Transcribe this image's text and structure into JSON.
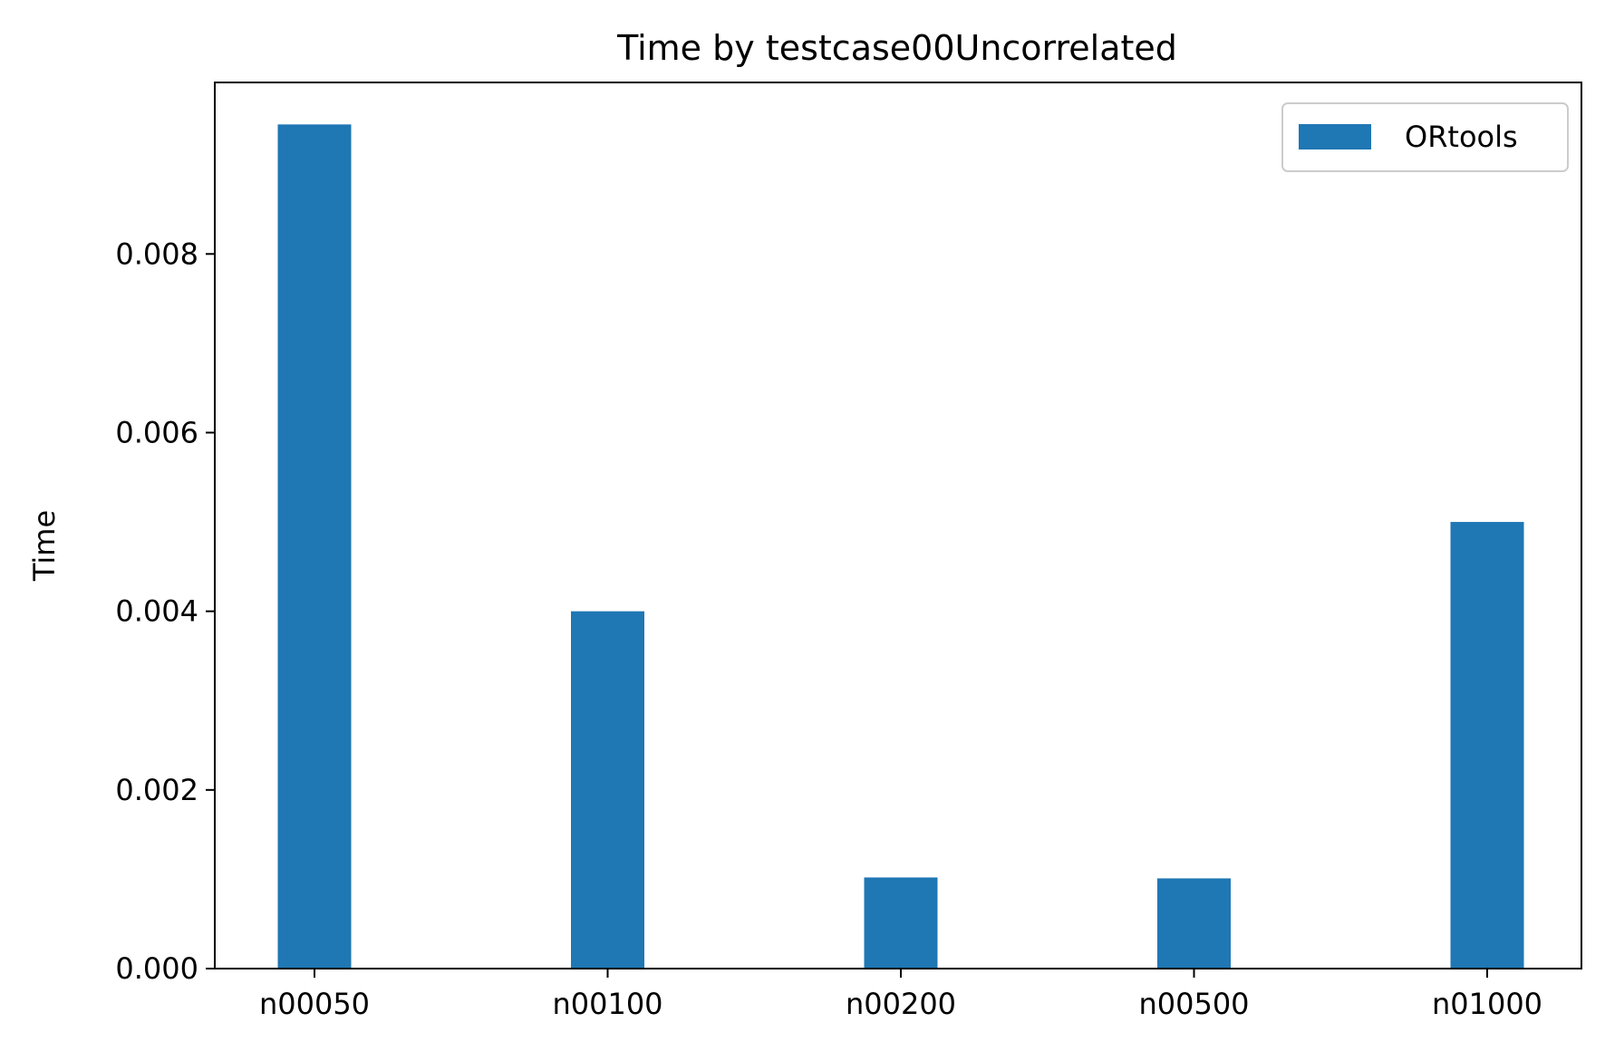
{
  "chart_data": {
    "type": "bar",
    "title": "Time by testcase00Uncorrelated",
    "xlabel": "",
    "ylabel": "Time",
    "categories": [
      "n00050",
      "n00100",
      "n00200",
      "n00500",
      "n01000"
    ],
    "series": [
      {
        "name": "ORtools",
        "values": [
          0.00945,
          0.004,
          0.00102,
          0.00101,
          0.005
        ],
        "color": "#1f77b4"
      }
    ],
    "ylim": [
      0,
      0.00992
    ],
    "yticks": [
      0.0,
      0.002,
      0.004,
      0.006,
      0.008
    ],
    "ytick_labels": [
      "0.000",
      "0.002",
      "0.004",
      "0.006",
      "0.008"
    ],
    "grid": false,
    "legend_position": "top-right"
  }
}
